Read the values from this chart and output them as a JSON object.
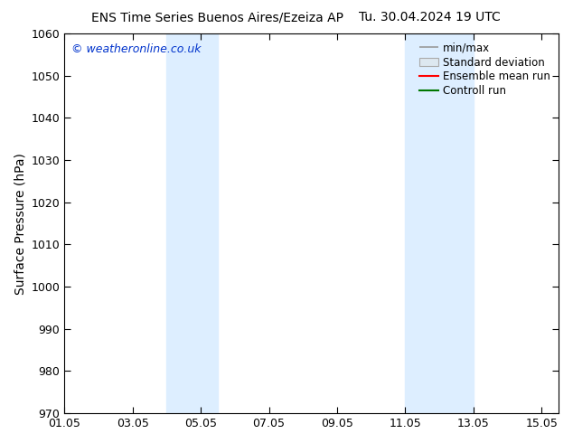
{
  "title_left": "ENS Time Series Buenos Aires/Ezeiza AP",
  "title_right": "Tu. 30.04.2024 19 UTC",
  "ylabel": "Surface Pressure (hPa)",
  "xlim": [
    1.0,
    15.5
  ],
  "ylim": [
    970,
    1060
  ],
  "yticks": [
    970,
    980,
    990,
    1000,
    1010,
    1020,
    1030,
    1040,
    1050,
    1060
  ],
  "xtick_labels": [
    "01.05",
    "03.05",
    "05.05",
    "07.05",
    "09.05",
    "11.05",
    "13.05",
    "15.05"
  ],
  "xtick_positions": [
    1,
    3,
    5,
    7,
    9,
    11,
    13,
    15
  ],
  "shaded_bands": [
    {
      "x_start": 4.0,
      "x_end": 5.5
    },
    {
      "x_start": 11.0,
      "x_end": 13.0
    }
  ],
  "shaded_color": "#ddeeff",
  "watermark_text": "© weatheronline.co.uk",
  "watermark_color": "#0033cc",
  "legend_labels": [
    "min/max",
    "Standard deviation",
    "Ensemble mean run",
    "Controll run"
  ],
  "legend_colors": [
    "#999999",
    "#ccddee",
    "#ff0000",
    "#007700"
  ],
  "background_color": "#ffffff",
  "title_fontsize": 10,
  "tick_fontsize": 9,
  "ylabel_fontsize": 10
}
